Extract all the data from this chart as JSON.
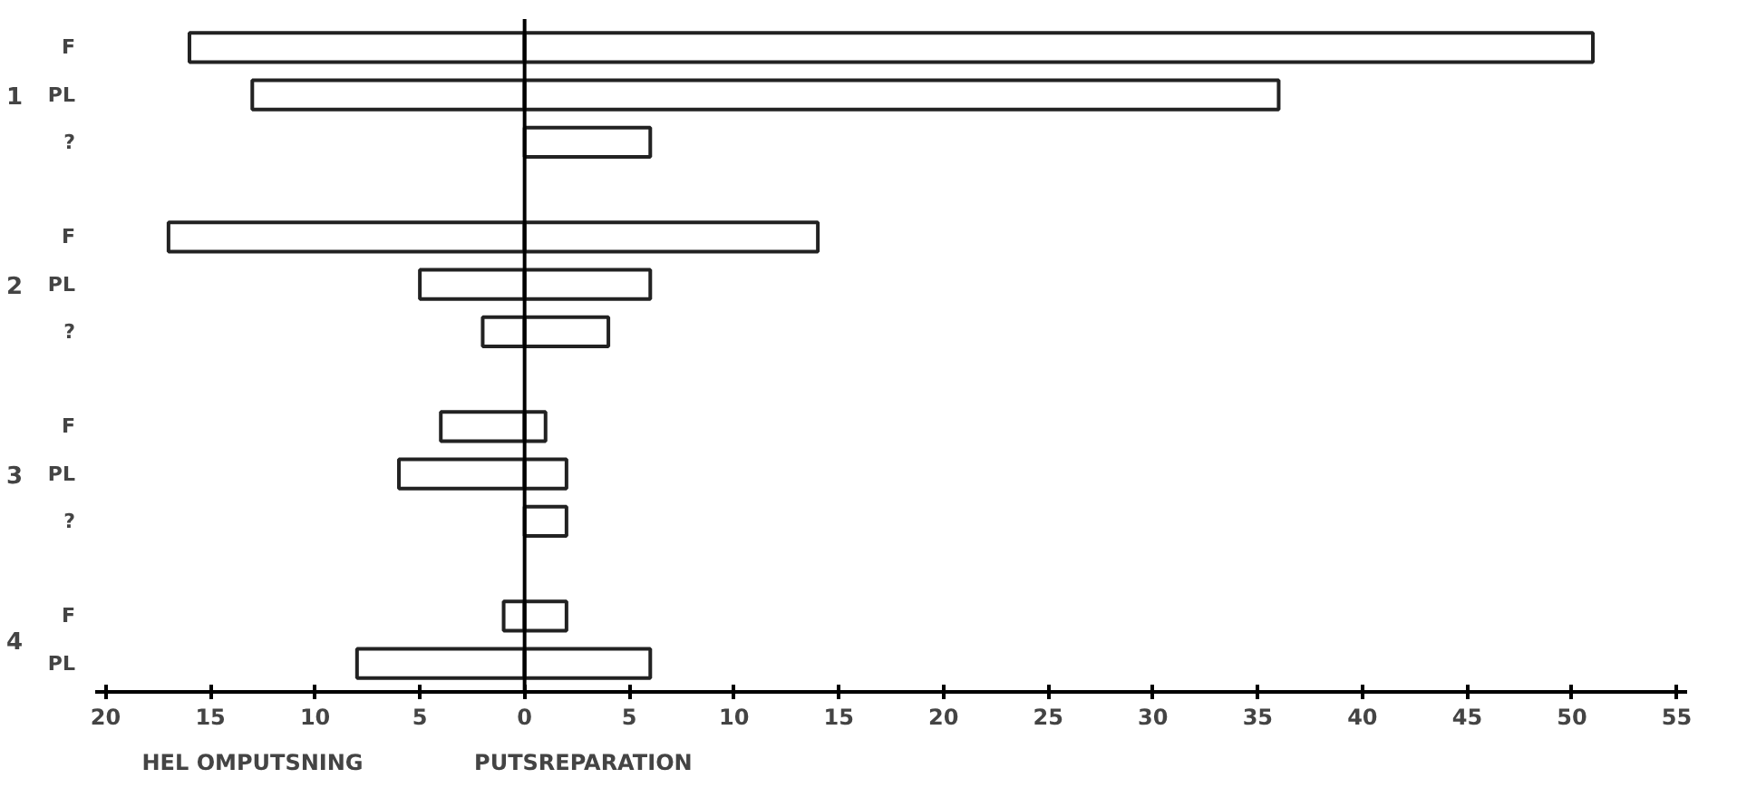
{
  "chart_data": {
    "type": "bar",
    "orientation": "horizontal",
    "categories": [
      "F",
      "PL",
      "?",
      null,
      "F",
      "PL",
      "?",
      null,
      "F",
      "PL",
      "?",
      null,
      "F",
      "PL"
    ],
    "series": [
      {
        "color": "#ffffff",
        "values": [
          -16,
          -13,
          null,
          null,
          -17,
          -5,
          -2,
          null,
          -4,
          -6,
          null,
          null,
          -1,
          -8
        ]
      },
      {
        "color": "#ffffff",
        "values": [
          51,
          36,
          6,
          null,
          14,
          6,
          4,
          null,
          1,
          2,
          2,
          null,
          2,
          6
        ]
      }
    ],
    "xlim": [
      -20.5,
      55.5
    ],
    "xticks": [
      {
        "value": -20,
        "label": "20"
      },
      {
        "value": -15,
        "label": "15"
      },
      {
        "value": -10,
        "label": "10"
      },
      {
        "value": -5,
        "label": "5"
      },
      0,
      5,
      10,
      15,
      20,
      25,
      30,
      35,
      40,
      45,
      50,
      55
    ],
    "ref_lines": [
      {
        "axis": "x",
        "value": 0,
        "color": "#000000"
      }
    ],
    "annotations": [
      "HEL OMPUTSNING",
      "PUTSREPARATION",
      "1",
      "2",
      "3",
      "4"
    ],
    "stacked": true,
    "grid": false
  }
}
